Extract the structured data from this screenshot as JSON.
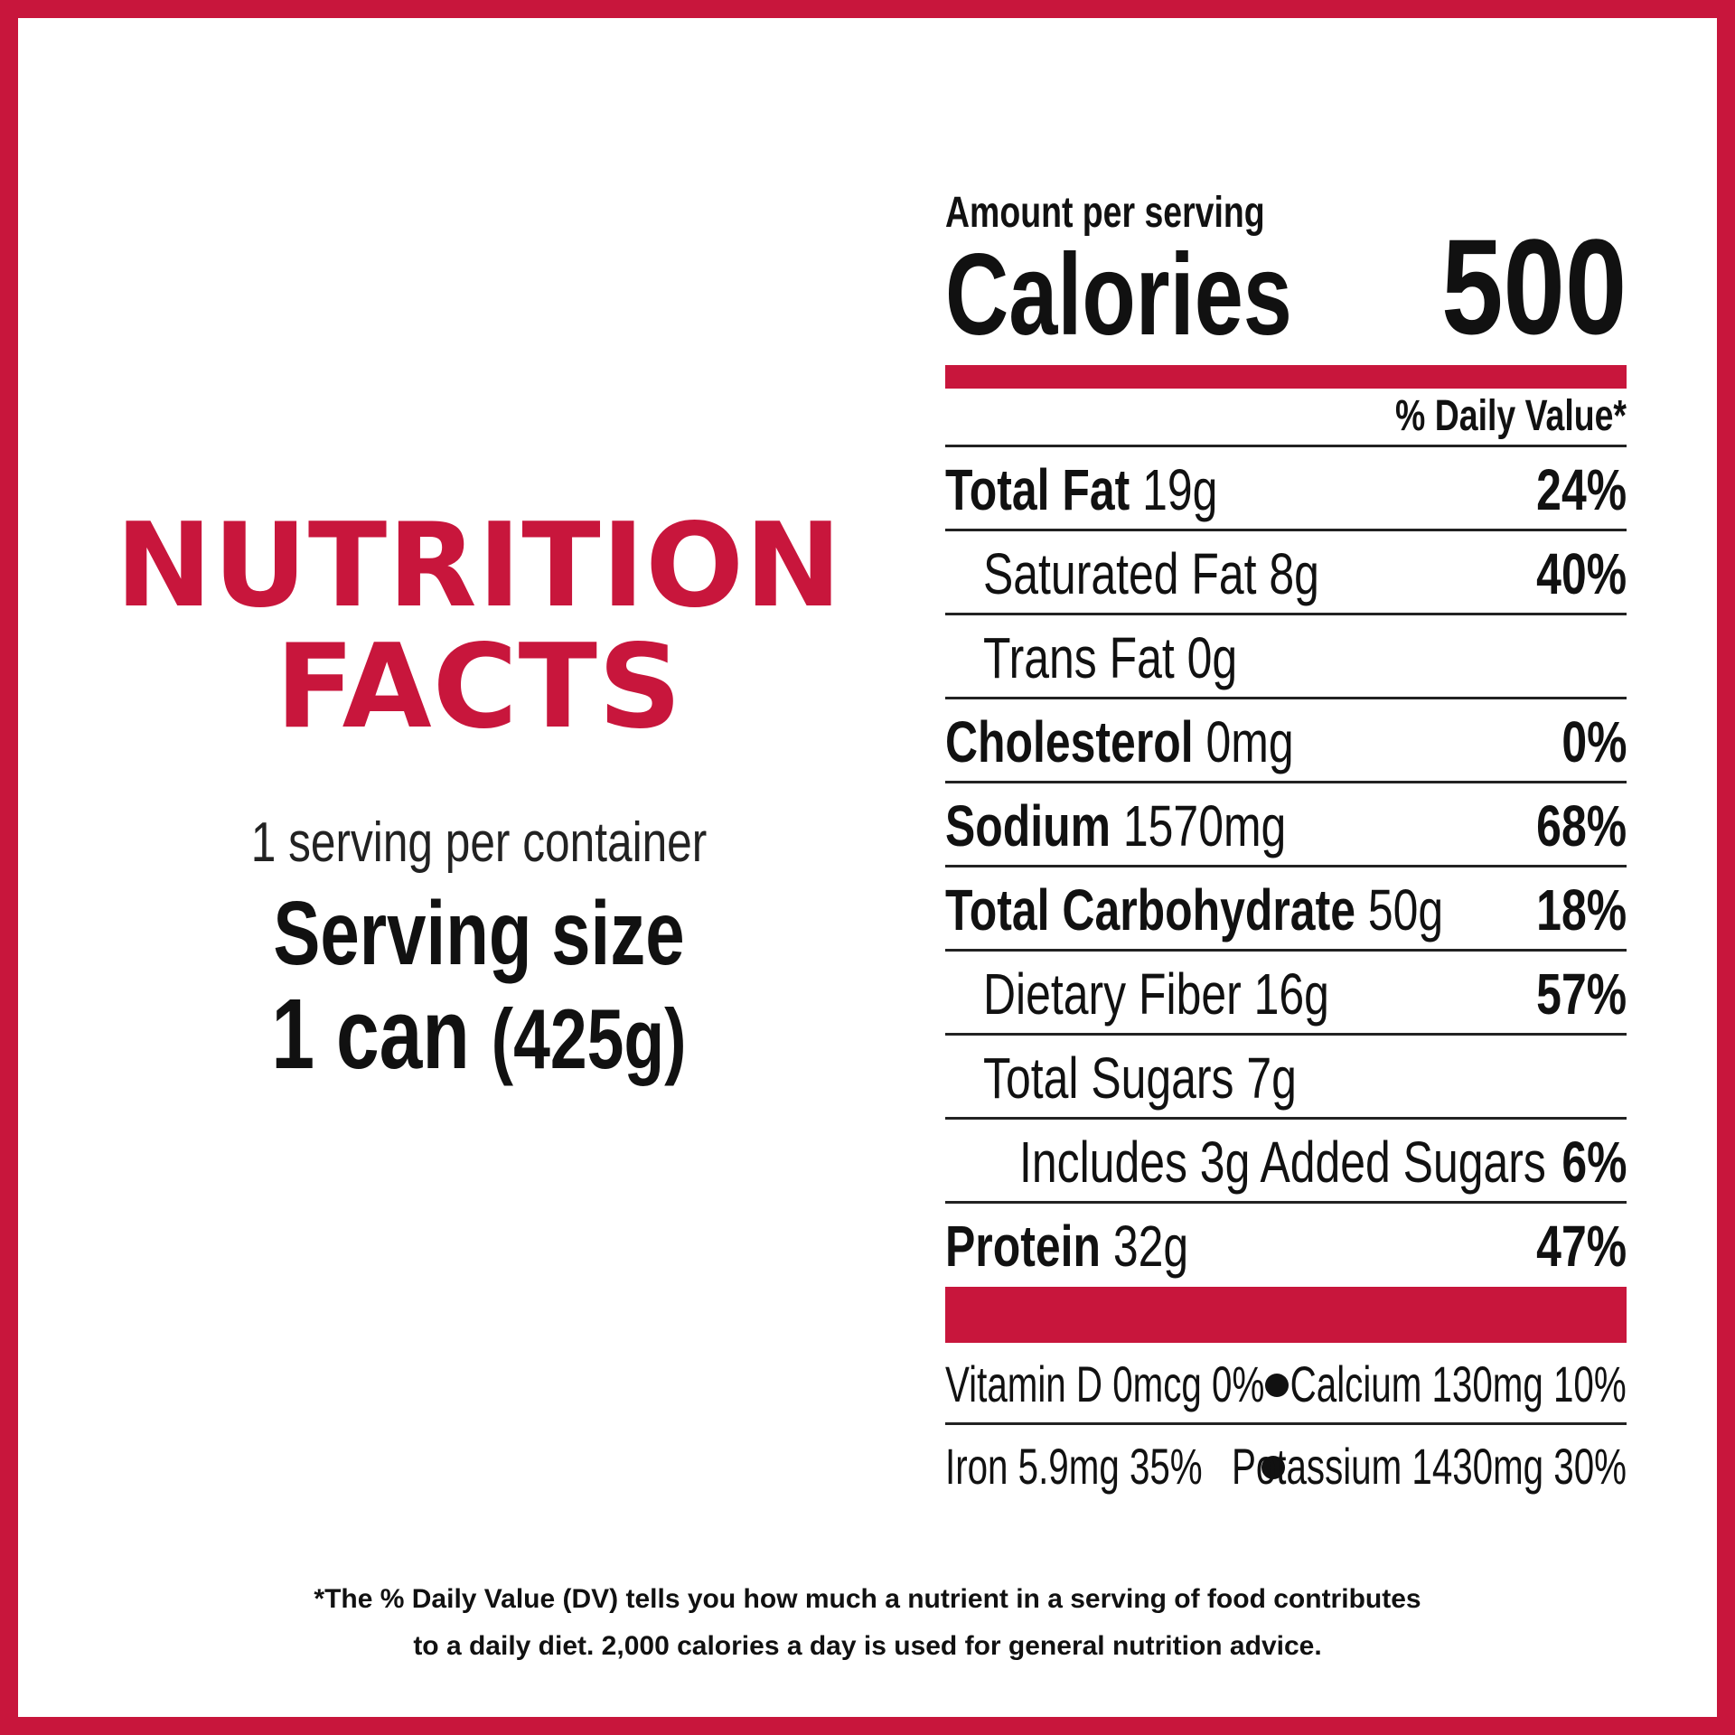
{
  "colors": {
    "brand_red": "#c8163c",
    "text": "#111111"
  },
  "left": {
    "title_line1": "NUTRITION",
    "title_line2": "FACTS",
    "servings_per_container": "1 serving per container",
    "serving_size_label": "Serving size",
    "serving_size_amount": "1 can",
    "serving_size_weight": "(425g)"
  },
  "panel": {
    "amount_per_serving": "Amount per serving",
    "calories_label": "Calories",
    "calories_value": "500",
    "daily_value_header": "% Daily Value*",
    "nutrients": [
      {
        "name": "Total Fat",
        "amount": "19g",
        "dv": "24%"
      },
      {
        "name": "Saturated Fat 8g",
        "amount": "",
        "dv": "40%"
      },
      {
        "name": "Trans Fat 0g",
        "amount": "",
        "dv": ""
      },
      {
        "name": "Cholesterol",
        "amount": "0mg",
        "dv": "0%"
      },
      {
        "name": "Sodium",
        "amount": "1570mg",
        "dv": "68%"
      },
      {
        "name": "Total Carbohydrate",
        "amount": "50g",
        "dv": "18%"
      },
      {
        "name": "Dietary Fiber 16g",
        "amount": "",
        "dv": "57%"
      },
      {
        "name": "Total Sugars 7g",
        "amount": "",
        "dv": ""
      },
      {
        "name": "Includes 3g Added Sugars",
        "amount": "",
        "dv": "6%"
      },
      {
        "name": "Protein",
        "amount": "32g",
        "dv": "47%"
      }
    ],
    "micronutrients": {
      "vitamin_d": "Vitamin D 0mcg 0%",
      "calcium": "Calcium 130mg 10%",
      "iron": "Iron 5.9mg 35%",
      "potassium": "Potassium 1430mg 30%"
    }
  },
  "footnote": {
    "line1": "*The % Daily Value (DV) tells you how much a nutrient in a serving of food contributes",
    "line2": "to a daily diet. 2,000 calories a day is used for general nutrition advice."
  }
}
